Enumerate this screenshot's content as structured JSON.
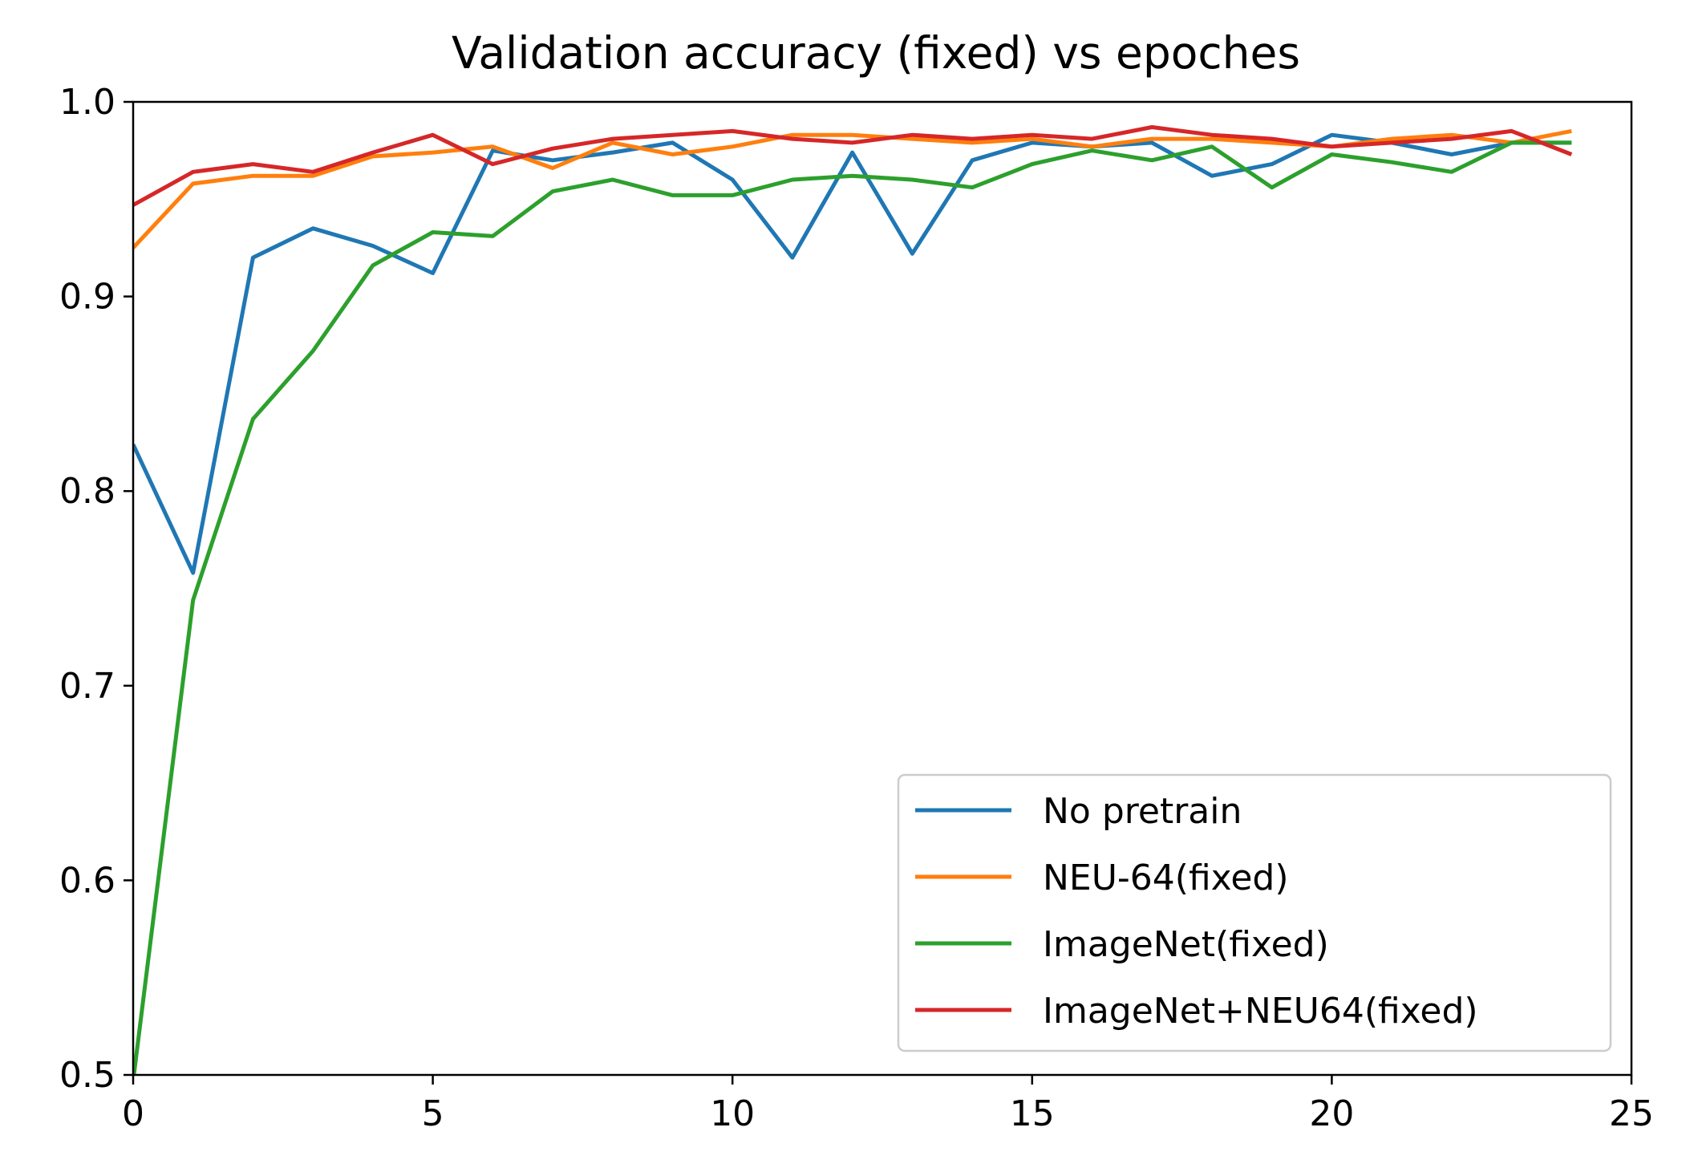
{
  "chart_data": {
    "type": "line",
    "title": "Validation accuracy (fixed) vs epoches",
    "xlabel": "",
    "ylabel": "",
    "xlim": [
      0,
      25
    ],
    "ylim": [
      0.5,
      1.0
    ],
    "x_ticks": [
      "0",
      "5",
      "10",
      "15",
      "20",
      "25"
    ],
    "y_ticks": [
      "0.5",
      "0.6",
      "0.7",
      "0.8",
      "0.9",
      "1.0"
    ],
    "grid": false,
    "legend_position": "lower-right",
    "x": [
      0,
      1,
      2,
      3,
      4,
      5,
      6,
      7,
      8,
      9,
      10,
      11,
      12,
      13,
      14,
      15,
      16,
      17,
      18,
      19,
      20,
      21,
      22,
      23,
      24
    ],
    "series": [
      {
        "name": "No pretrain",
        "color": "#1f77b4",
        "values": [
          0.824,
          0.758,
          0.92,
          0.935,
          0.926,
          0.912,
          0.975,
          0.97,
          0.974,
          0.979,
          0.96,
          0.92,
          0.974,
          0.922,
          0.97,
          0.979,
          0.977,
          0.979,
          0.962,
          0.968,
          0.983,
          0.979,
          0.973,
          0.979,
          0.979
        ]
      },
      {
        "name": "NEU-64(fixed)",
        "color": "#ff7f0e",
        "values": [
          0.925,
          0.958,
          0.962,
          0.962,
          0.972,
          0.974,
          0.977,
          0.966,
          0.979,
          0.973,
          0.977,
          0.983,
          0.983,
          0.981,
          0.979,
          0.981,
          0.977,
          0.981,
          0.981,
          0.979,
          0.977,
          0.981,
          0.983,
          0.979,
          0.985
        ]
      },
      {
        "name": "ImageNet(fixed)",
        "color": "#2ca02c",
        "values": [
          0.497,
          0.744,
          0.837,
          0.872,
          0.916,
          0.933,
          0.931,
          0.954,
          0.96,
          0.952,
          0.952,
          0.96,
          0.962,
          0.96,
          0.956,
          0.968,
          0.975,
          0.97,
          0.977,
          0.956,
          0.973,
          0.969,
          0.964,
          0.979,
          0.979
        ]
      },
      {
        "name": "ImageNet+NEU64(fixed)",
        "color": "#d62728",
        "values": [
          0.947,
          0.964,
          0.968,
          0.964,
          0.974,
          0.983,
          0.968,
          0.976,
          0.981,
          0.983,
          0.985,
          0.981,
          0.979,
          0.983,
          0.981,
          0.983,
          0.981,
          0.987,
          0.983,
          0.981,
          0.977,
          0.979,
          0.981,
          0.985,
          0.973
        ]
      }
    ]
  }
}
